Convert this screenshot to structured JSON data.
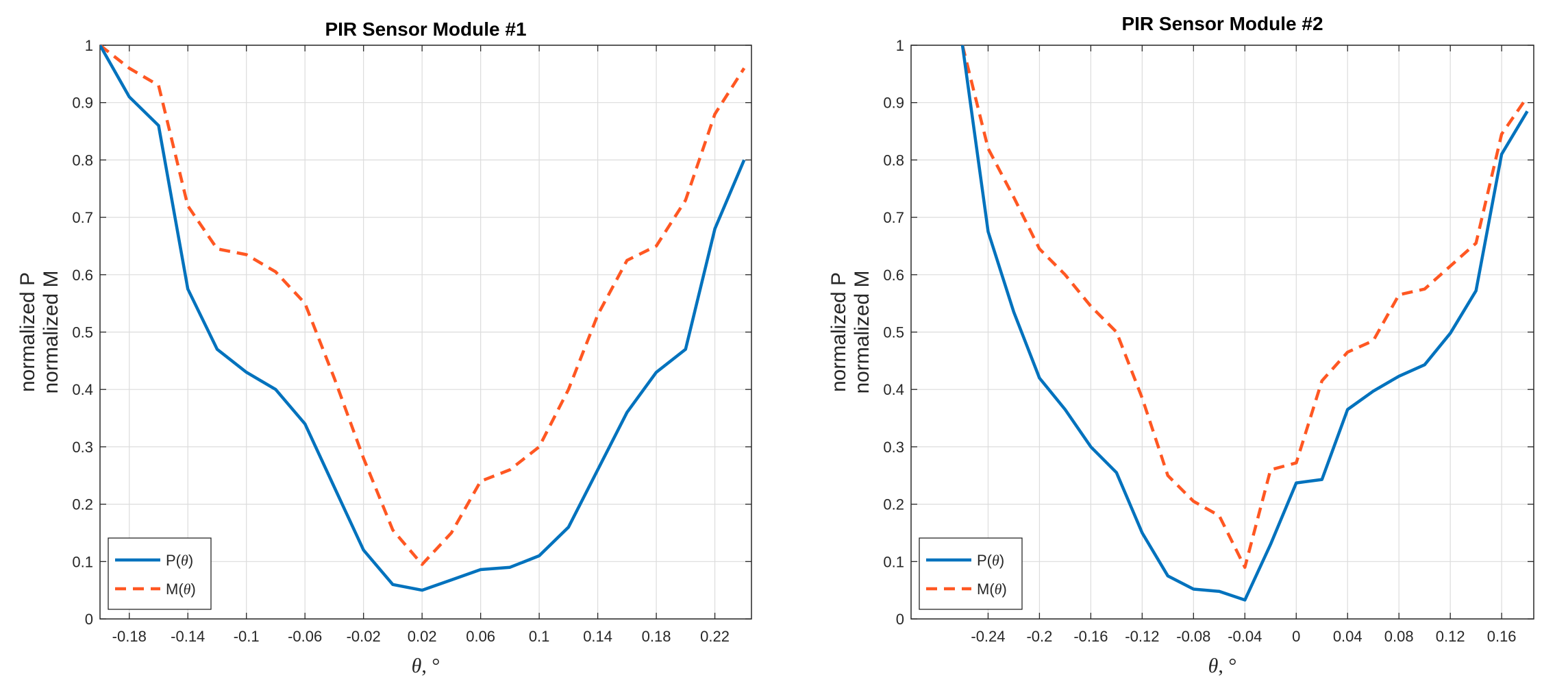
{
  "colors": {
    "P": "#0072BD",
    "M": "#FF5722"
  },
  "chart_data": [
    {
      "type": "line",
      "title": "PIR Sensor Module #1",
      "ylabel_line1": "normalized P",
      "ylabel_line2": "normalized M",
      "xlabel_symbol": "θ",
      "xlabel_unit": ", °",
      "xlim": [
        -0.2,
        0.245
      ],
      "ylim": [
        0,
        1
      ],
      "xticks": [
        -0.18,
        -0.14,
        -0.1,
        -0.06,
        -0.02,
        0.02,
        0.06,
        0.1,
        0.14,
        0.18,
        0.22
      ],
      "xtick_labels": [
        "-0.18",
        "-0.14",
        "-0.1",
        "-0.06",
        "-0.02",
        "0.02",
        "0.06",
        "0.1",
        "0.14",
        "0.18",
        "0.22"
      ],
      "yticks": [
        0,
        0.1,
        0.2,
        0.3,
        0.4,
        0.5,
        0.6,
        0.7,
        0.8,
        0.9,
        1
      ],
      "ytick_labels": [
        "0",
        "0.1",
        "0.2",
        "0.3",
        "0.4",
        "0.5",
        "0.6",
        "0.7",
        "0.8",
        "0.9",
        "1"
      ],
      "grid": true,
      "legend": "bottom-left",
      "series": [
        {
          "name": "P(θ)",
          "style": "solid",
          "x": [
            -0.2,
            -0.18,
            -0.16,
            -0.14,
            -0.12,
            -0.1,
            -0.08,
            -0.06,
            -0.04,
            -0.02,
            0,
            0.02,
            0.04,
            0.06,
            0.08,
            0.1,
            0.12,
            0.14,
            0.16,
            0.18,
            0.2,
            0.22,
            0.24
          ],
          "y": [
            1.0,
            0.91,
            0.86,
            0.575,
            0.47,
            0.43,
            0.4,
            0.34,
            0.23,
            0.12,
            0.06,
            0.05,
            0.068,
            0.086,
            0.09,
            0.11,
            0.16,
            0.26,
            0.36,
            0.43,
            0.47,
            0.68,
            0.8
          ]
        },
        {
          "name": "M(θ)",
          "style": "dashed",
          "x": [
            -0.2,
            -0.18,
            -0.16,
            -0.14,
            -0.12,
            -0.1,
            -0.08,
            -0.06,
            -0.04,
            -0.02,
            0,
            0.02,
            0.04,
            0.06,
            0.08,
            0.1,
            0.12,
            0.14,
            0.16,
            0.18,
            0.2,
            0.22,
            0.24
          ],
          "y": [
            1.0,
            0.96,
            0.93,
            0.72,
            0.645,
            0.635,
            0.605,
            0.55,
            0.42,
            0.28,
            0.155,
            0.095,
            0.15,
            0.24,
            0.26,
            0.3,
            0.4,
            0.53,
            0.625,
            0.65,
            0.73,
            0.88,
            0.96
          ]
        }
      ]
    },
    {
      "type": "line",
      "title": "PIR Sensor Module #2",
      "ylabel_line1": "normalized P",
      "ylabel_line2": "normalized M",
      "xlabel_symbol": "θ",
      "xlabel_unit": ", °",
      "xlim": [
        -0.3,
        0.185
      ],
      "ylim": [
        0,
        1
      ],
      "xticks": [
        -0.24,
        -0.2,
        -0.16,
        -0.12,
        -0.08,
        -0.04,
        0,
        0.04,
        0.08,
        0.12,
        0.16
      ],
      "xtick_labels": [
        "-0.24",
        "-0.2",
        "-0.16",
        "-0.12",
        "-0.08",
        "-0.04",
        "0",
        "0.04",
        "0.08",
        "0.12",
        "0.16"
      ],
      "yticks": [
        0,
        0.1,
        0.2,
        0.3,
        0.4,
        0.5,
        0.6,
        0.7,
        0.8,
        0.9,
        1
      ],
      "ytick_labels": [
        "0",
        "0.1",
        "0.2",
        "0.3",
        "0.4",
        "0.5",
        "0.6",
        "0.7",
        "0.8",
        "0.9",
        "1"
      ],
      "grid": true,
      "legend": "bottom-left",
      "series": [
        {
          "name": "P(θ)",
          "style": "solid",
          "x": [
            -0.26,
            -0.24,
            -0.22,
            -0.2,
            -0.18,
            -0.16,
            -0.14,
            -0.12,
            -0.1,
            -0.08,
            -0.06,
            -0.04,
            -0.02,
            0,
            0.02,
            0.04,
            0.06,
            0.08,
            0.1,
            0.12,
            0.14,
            0.16,
            0.18
          ],
          "y": [
            1.0,
            0.675,
            0.535,
            0.42,
            0.365,
            0.3,
            0.255,
            0.15,
            0.075,
            0.052,
            0.048,
            0.033,
            0.13,
            0.237,
            0.243,
            0.365,
            0.397,
            0.423,
            0.443,
            0.498,
            0.572,
            0.81,
            0.885
          ]
        },
        {
          "name": "M(θ)",
          "style": "dashed",
          "x": [
            -0.26,
            -0.24,
            -0.22,
            -0.2,
            -0.18,
            -0.16,
            -0.14,
            -0.12,
            -0.1,
            -0.08,
            -0.06,
            -0.04,
            -0.02,
            0,
            0.02,
            0.04,
            0.06,
            0.08,
            0.1,
            0.12,
            0.14,
            0.16,
            0.18
          ],
          "y": [
            1.0,
            0.82,
            0.735,
            0.645,
            0.6,
            0.545,
            0.5,
            0.385,
            0.25,
            0.205,
            0.18,
            0.09,
            0.26,
            0.272,
            0.415,
            0.465,
            0.485,
            0.565,
            0.575,
            0.615,
            0.655,
            0.845,
            0.91
          ]
        }
      ]
    }
  ]
}
